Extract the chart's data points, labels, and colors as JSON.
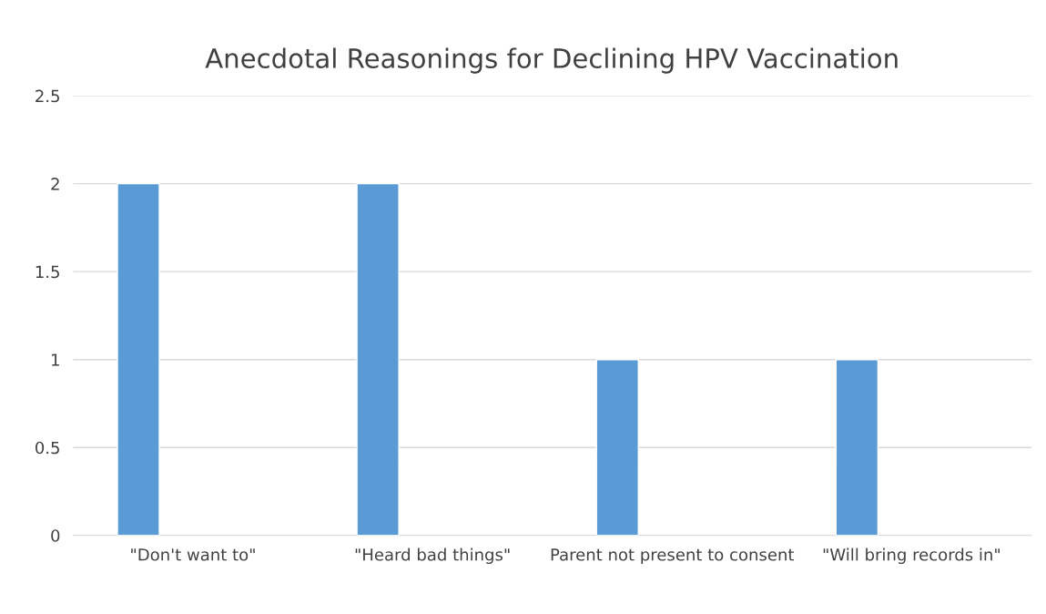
{
  "chart_data": {
    "type": "bar",
    "title": "Anecdotal Reasonings for Declining HPV Vaccination",
    "categories": [
      "\"Don't want to\"",
      "\"Heard bad things\"",
      "Parent not present to consent",
      "\"Will bring records in\""
    ],
    "values": [
      2,
      2,
      1,
      1
    ],
    "color": "#5b9bd5",
    "ylim": [
      0,
      2.5
    ],
    "yticks": [
      0,
      0.5,
      1,
      1.5,
      2,
      2.5
    ],
    "grid": "y"
  }
}
